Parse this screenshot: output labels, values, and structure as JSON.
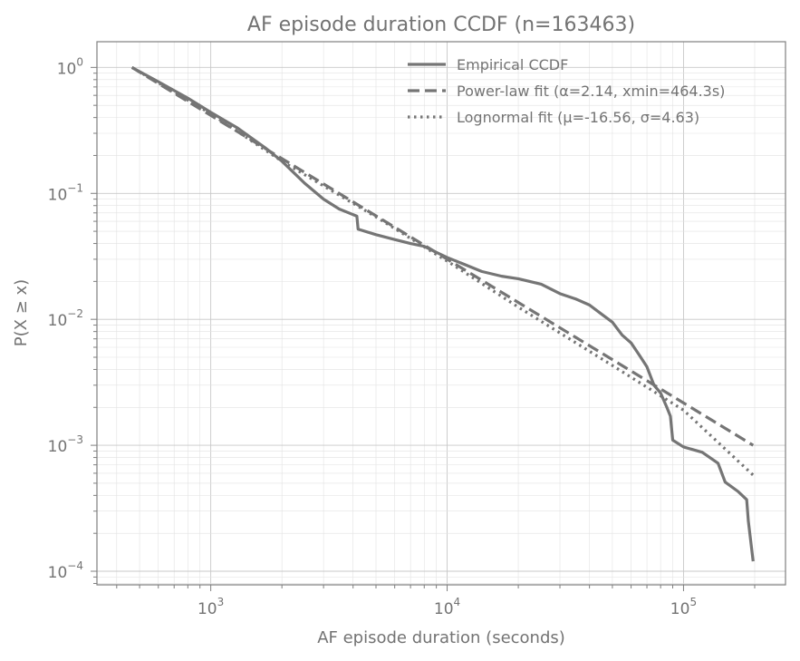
{
  "chart_data": {
    "type": "line",
    "title": "AF episode duration CCDF (n=163463)",
    "xlabel": "AF episode duration (seconds)",
    "ylabel": "P(X ≥ x)",
    "xscale": "log",
    "yscale": "log",
    "xlim": [
      330,
      270000
    ],
    "ylim": [
      7.8e-05,
      1.6
    ],
    "grid": true,
    "legend_position": "top-right",
    "x_ticks": [
      {
        "value": 1000,
        "base": "10",
        "exp": "3"
      },
      {
        "value": 10000,
        "base": "10",
        "exp": "4"
      },
      {
        "value": 100000,
        "base": "10",
        "exp": "5"
      }
    ],
    "y_ticks": [
      {
        "value": 1,
        "base": "10",
        "exp": "0"
      },
      {
        "value": 0.1,
        "base": "10",
        "exp": "−1"
      },
      {
        "value": 0.01,
        "base": "10",
        "exp": "−2"
      },
      {
        "value": 0.001,
        "base": "10",
        "exp": "−3"
      },
      {
        "value": 0.0001,
        "base": "10",
        "exp": "−4"
      }
    ],
    "series": [
      {
        "name": "Empirical CCDF",
        "style": "solid",
        "color": "#757575",
        "points": [
          [
            464,
            1.0
          ],
          [
            600,
            0.77
          ],
          [
            800,
            0.57
          ],
          [
            1000,
            0.44
          ],
          [
            1300,
            0.33
          ],
          [
            1700,
            0.23
          ],
          [
            2000,
            0.18
          ],
          [
            2500,
            0.12
          ],
          [
            3000,
            0.09
          ],
          [
            3500,
            0.075
          ],
          [
            4150,
            0.066
          ],
          [
            4200,
            0.052
          ],
          [
            5000,
            0.047
          ],
          [
            6000,
            0.043
          ],
          [
            7000,
            0.04
          ],
          [
            8000,
            0.038
          ],
          [
            9000,
            0.034
          ],
          [
            10000,
            0.031
          ],
          [
            12000,
            0.027
          ],
          [
            14000,
            0.024
          ],
          [
            17000,
            0.022
          ],
          [
            20000,
            0.021
          ],
          [
            25000,
            0.019
          ],
          [
            30000,
            0.016
          ],
          [
            35000,
            0.0145
          ],
          [
            40000,
            0.013
          ],
          [
            45000,
            0.011
          ],
          [
            50000,
            0.0095
          ],
          [
            55000,
            0.0075
          ],
          [
            60000,
            0.0065
          ],
          [
            65000,
            0.0052
          ],
          [
            70000,
            0.0042
          ],
          [
            75000,
            0.003
          ],
          [
            80000,
            0.0026
          ],
          [
            85000,
            0.002
          ],
          [
            88000,
            0.0017
          ],
          [
            90000,
            0.0011
          ],
          [
            100000,
            0.00097
          ],
          [
            120000,
            0.00088
          ],
          [
            140000,
            0.00072
          ],
          [
            150000,
            0.00051
          ],
          [
            170000,
            0.00043
          ],
          [
            185000,
            0.00037
          ],
          [
            188000,
            0.00025
          ],
          [
            197000,
            0.00012
          ]
        ]
      },
      {
        "name": "Power-law fit (α=2.14, xmin=464.3s)",
        "style": "dashed",
        "color": "#757575",
        "points": [
          [
            464.3,
            1.0
          ],
          [
            197000,
            0.001
          ]
        ]
      },
      {
        "name": "Lognormal fit (μ=-16.56, σ=4.63)",
        "style": "dotted",
        "color": "#757575",
        "points": [
          [
            464,
            1.0
          ],
          [
            1000,
            0.43
          ],
          [
            2000,
            0.18
          ],
          [
            5000,
            0.065
          ],
          [
            10000,
            0.029
          ],
          [
            20000,
            0.0125
          ],
          [
            50000,
            0.0043
          ],
          [
            100000,
            0.0019
          ],
          [
            197000,
            0.00058
          ]
        ]
      }
    ]
  }
}
